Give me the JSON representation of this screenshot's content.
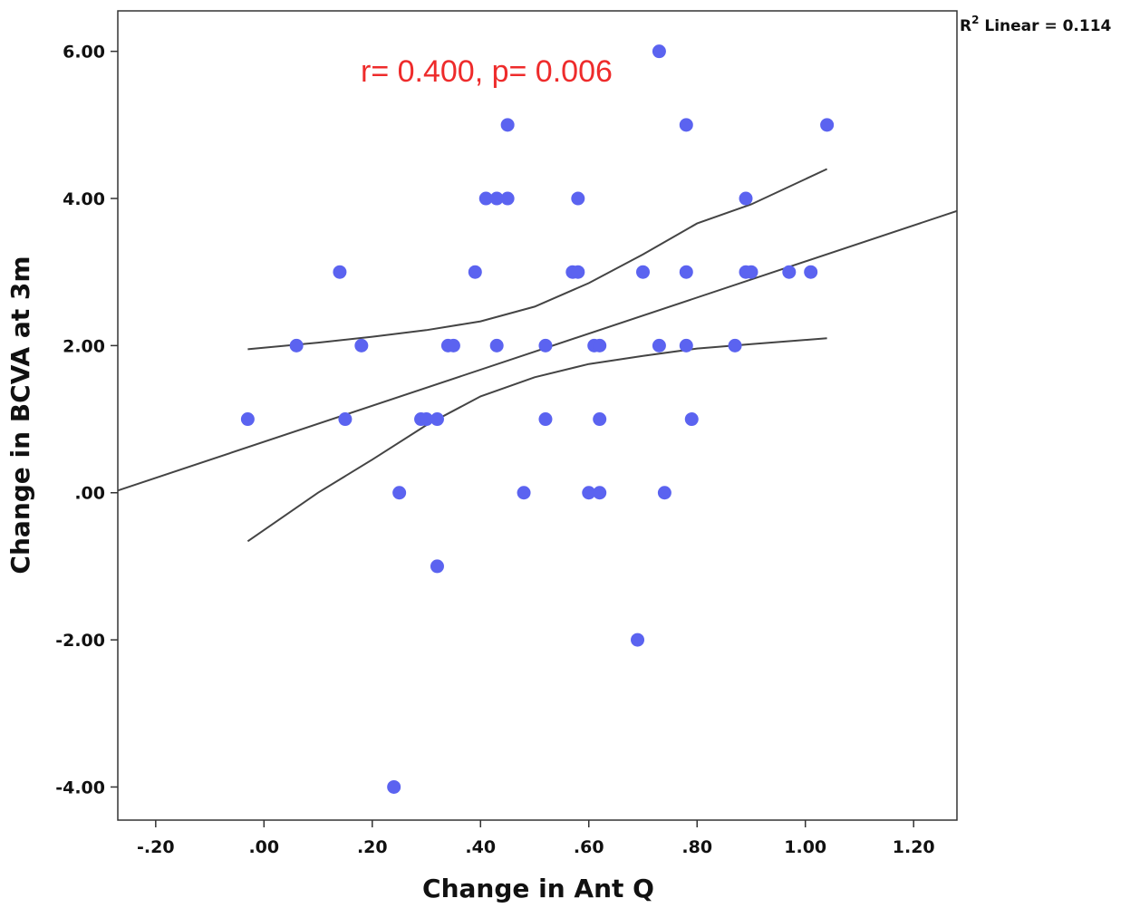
{
  "chart_data": {
    "type": "scatter",
    "xlabel": "Change in Ant Q",
    "ylabel": "Change in BCVA at 3m",
    "xlim": [
      -0.27,
      1.28
    ],
    "ylim": [
      -4.45,
      6.55
    ],
    "x_ticks": [
      -0.2,
      0.0,
      0.2,
      0.4,
      0.6,
      0.8,
      1.0,
      1.2
    ],
    "x_tick_labels": [
      "-.20",
      ".00",
      ".20",
      ".40",
      ".60",
      ".80",
      "1.00",
      "1.20"
    ],
    "y_ticks": [
      -4,
      -2,
      0,
      2,
      4,
      6
    ],
    "y_tick_labels": [
      "-4.00",
      "-2.00",
      ".00",
      "2.00",
      "4.00",
      "6.00"
    ],
    "annotation": "r= 0.400, p= 0.006",
    "r2_label": "R",
    "r2_sup": "2",
    "r2_text": " Linear = 0.114",
    "point_color": "#5b63f0",
    "line_color": "#444444",
    "points": [
      {
        "x": -0.03,
        "y": 1
      },
      {
        "x": 0.06,
        "y": 2
      },
      {
        "x": 0.14,
        "y": 3
      },
      {
        "x": 0.15,
        "y": 1
      },
      {
        "x": 0.18,
        "y": 2
      },
      {
        "x": 0.24,
        "y": -4
      },
      {
        "x": 0.25,
        "y": 0
      },
      {
        "x": 0.29,
        "y": 1
      },
      {
        "x": 0.3,
        "y": 1
      },
      {
        "x": 0.32,
        "y": 1
      },
      {
        "x": 0.32,
        "y": -1
      },
      {
        "x": 0.34,
        "y": 2
      },
      {
        "x": 0.35,
        "y": 2
      },
      {
        "x": 0.39,
        "y": 3
      },
      {
        "x": 0.41,
        "y": 4
      },
      {
        "x": 0.43,
        "y": 4
      },
      {
        "x": 0.43,
        "y": 2
      },
      {
        "x": 0.45,
        "y": 4
      },
      {
        "x": 0.45,
        "y": 5
      },
      {
        "x": 0.48,
        "y": 0
      },
      {
        "x": 0.52,
        "y": 2
      },
      {
        "x": 0.52,
        "y": 1
      },
      {
        "x": 0.57,
        "y": 3
      },
      {
        "x": 0.58,
        "y": 3
      },
      {
        "x": 0.58,
        "y": 4
      },
      {
        "x": 0.6,
        "y": 0
      },
      {
        "x": 0.61,
        "y": 2
      },
      {
        "x": 0.62,
        "y": 2
      },
      {
        "x": 0.62,
        "y": 1
      },
      {
        "x": 0.62,
        "y": 0
      },
      {
        "x": 0.69,
        "y": -2
      },
      {
        "x": 0.7,
        "y": 3
      },
      {
        "x": 0.73,
        "y": 6
      },
      {
        "x": 0.73,
        "y": 2
      },
      {
        "x": 0.74,
        "y": 0
      },
      {
        "x": 0.78,
        "y": 5
      },
      {
        "x": 0.78,
        "y": 3
      },
      {
        "x": 0.78,
        "y": 2
      },
      {
        "x": 0.79,
        "y": 1
      },
      {
        "x": 0.87,
        "y": 2
      },
      {
        "x": 0.89,
        "y": 4
      },
      {
        "x": 0.89,
        "y": 3
      },
      {
        "x": 0.9,
        "y": 3
      },
      {
        "x": 0.97,
        "y": 3
      },
      {
        "x": 1.01,
        "y": 3
      },
      {
        "x": 1.04,
        "y": 5
      }
    ],
    "fit_line": {
      "x": [
        -0.27,
        1.28
      ],
      "y": [
        0.03,
        3.83
      ]
    },
    "ci_upper": {
      "x": [
        -0.03,
        0.1,
        0.2,
        0.3,
        0.4,
        0.5,
        0.6,
        0.7,
        0.8,
        0.9,
        1.04
      ],
      "y": [
        1.95,
        2.04,
        2.12,
        2.21,
        2.33,
        2.53,
        2.85,
        3.24,
        3.66,
        3.92,
        4.4
      ]
    },
    "ci_lower": {
      "x": [
        -0.03,
        0.1,
        0.2,
        0.3,
        0.4,
        0.5,
        0.6,
        0.7,
        0.8,
        0.9,
        1.04
      ],
      "y": [
        -0.66,
        0.0,
        0.45,
        0.92,
        1.31,
        1.57,
        1.75,
        1.86,
        1.96,
        2.02,
        2.1
      ]
    }
  }
}
